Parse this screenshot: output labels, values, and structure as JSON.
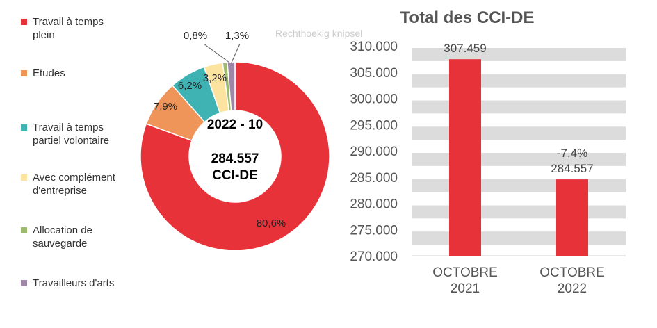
{
  "chart_data": [
    {
      "type": "pie",
      "variant": "donut",
      "center_label": {
        "line1": "2022 - 10",
        "line2": "284.557",
        "line3": "CCI-DE"
      },
      "categories": [
        "Travail à temps plein",
        "Etudes",
        "Travail à temps partiel volontaire",
        "Avec complément d'entreprise",
        "Allocation de sauvegarde",
        "Travailleurs d'arts"
      ],
      "legend_lines": [
        [
          "Travail à temps",
          "plein"
        ],
        [
          "Etudes"
        ],
        [
          "Travail à temps",
          "partiel volontaire"
        ],
        [
          "Avec complément",
          "d'entreprise"
        ],
        [
          "Allocation de",
          "sauvegarde"
        ],
        [
          "Travailleurs d'arts"
        ]
      ],
      "values": [
        80.6,
        7.9,
        6.2,
        3.2,
        0.8,
        1.3
      ],
      "data_labels": [
        "80,6%",
        "7,9%",
        "6,2%",
        "3,2%",
        "0,8%",
        "1,3%"
      ],
      "colors": [
        "#e8323a",
        "#f0955a",
        "#3fb3b3",
        "#fde3a0",
        "#9dbb6f",
        "#9e86a6"
      ],
      "legend_position": "left"
    },
    {
      "type": "bar",
      "title": "Total des CCI-DE",
      "categories": [
        [
          "OCTOBRE",
          "2021"
        ],
        [
          "OCTOBRE",
          "2022"
        ]
      ],
      "values": [
        307459,
        284557
      ],
      "data_labels": [
        "307.459",
        "284.557"
      ],
      "annotations": [
        "",
        "-7,4%"
      ],
      "ylim": [
        270000,
        310000
      ],
      "yticks": [
        270000,
        275000,
        280000,
        285000,
        290000,
        295000,
        300000,
        305000,
        310000
      ],
      "ytick_labels": [
        "270.000",
        "275.000",
        "280.000",
        "285.000",
        "290.000",
        "295.000",
        "300.000",
        "305.000",
        "310.000"
      ],
      "bar_color": "#e8323a",
      "grid": "horizontal bands"
    }
  ],
  "overlay_text": "Rechthoekig knipsel"
}
